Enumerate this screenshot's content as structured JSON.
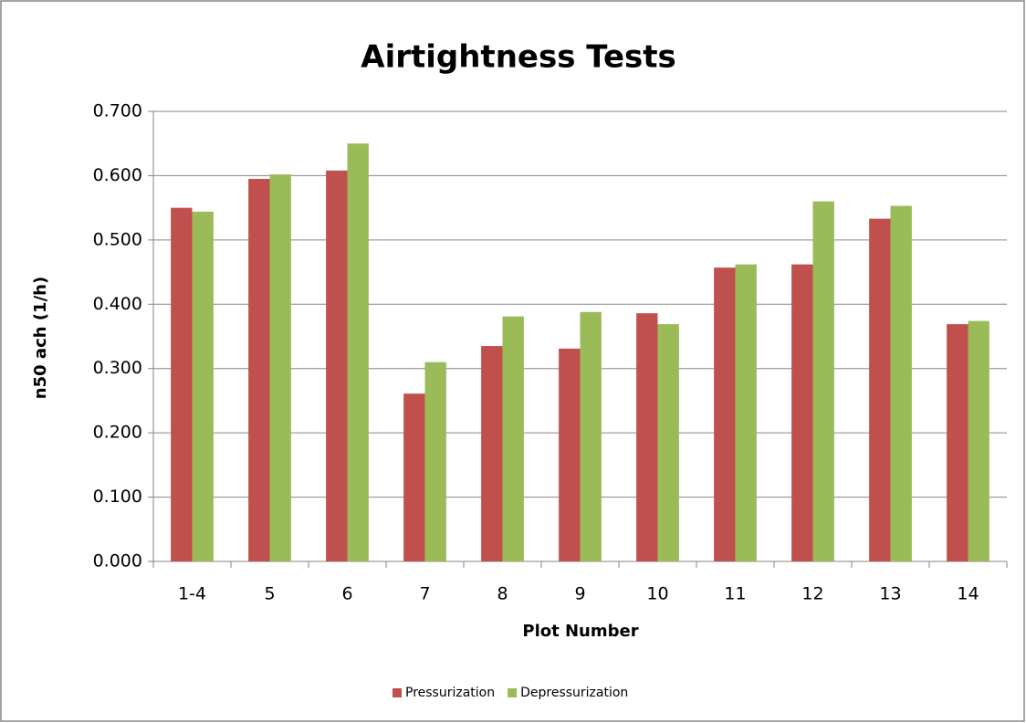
{
  "chart_data": {
    "type": "bar",
    "title": "Airtightness Tests",
    "x_label": "Plot Number",
    "y_label": "n50 ach (1/h)",
    "categories": [
      "1-4",
      "5",
      "6",
      "7",
      "8",
      "9",
      "10",
      "11",
      "12",
      "13",
      "14"
    ],
    "series": [
      {
        "name": "Pressurization",
        "color": "#c0504d",
        "values": [
          0.55,
          0.595,
          0.608,
          0.261,
          0.335,
          0.331,
          0.386,
          0.457,
          0.462,
          0.533,
          0.369
        ]
      },
      {
        "name": "Depressurization",
        "color": "#9bbb59",
        "values": [
          0.544,
          0.602,
          0.65,
          0.31,
          0.381,
          0.388,
          0.369,
          0.462,
          0.56,
          0.553,
          0.374
        ]
      }
    ],
    "ylim": [
      0,
      0.7
    ],
    "yticks": [
      {
        "value": 0,
        "label": "0.000"
      },
      {
        "value": 0.1,
        "label": "0.100"
      },
      {
        "value": 0.2,
        "label": "0.200"
      },
      {
        "value": 0.3,
        "label": "0.300"
      },
      {
        "value": 0.4,
        "label": "0.400"
      },
      {
        "value": 0.5,
        "label": "0.500"
      },
      {
        "value": 0.6,
        "label": "0.600"
      },
      {
        "value": 0.7,
        "label": "0.700"
      }
    ],
    "grid": true,
    "legend": "bottom"
  }
}
